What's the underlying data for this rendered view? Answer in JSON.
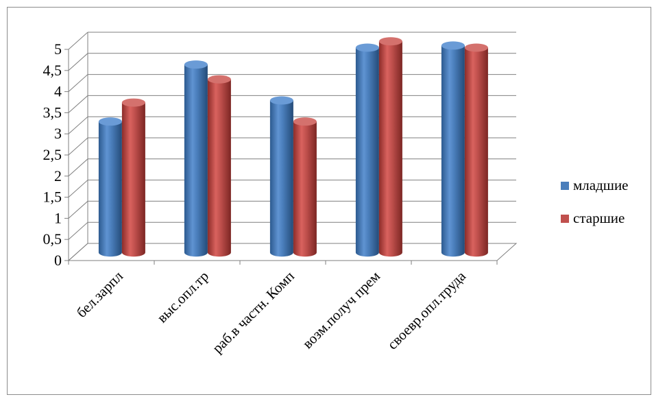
{
  "chart_data": {
    "type": "bar",
    "categories": [
      "бел.зарпл",
      "выс.опл.тр",
      "раб.в частн. Комп",
      "возм.получ прем",
      "своевр.опл.труда"
    ],
    "series": [
      {
        "name": "младшие",
        "values": [
          3.1,
          4.45,
          3.6,
          4.85,
          4.9
        ],
        "color": "#4a7ebb"
      },
      {
        "name": "старшие",
        "values": [
          3.55,
          4.1,
          3.1,
          5.0,
          4.85
        ],
        "color": "#c0504d"
      }
    ],
    "y_tick_labels": [
      "0",
      "0,5",
      "1",
      "1,5",
      "2",
      "2,5",
      "3",
      "3,5",
      "4",
      "4,5",
      "5"
    ],
    "ylim": [
      0,
      5
    ],
    "grid": true,
    "legend": "right",
    "style": "3d-cylinder"
  }
}
